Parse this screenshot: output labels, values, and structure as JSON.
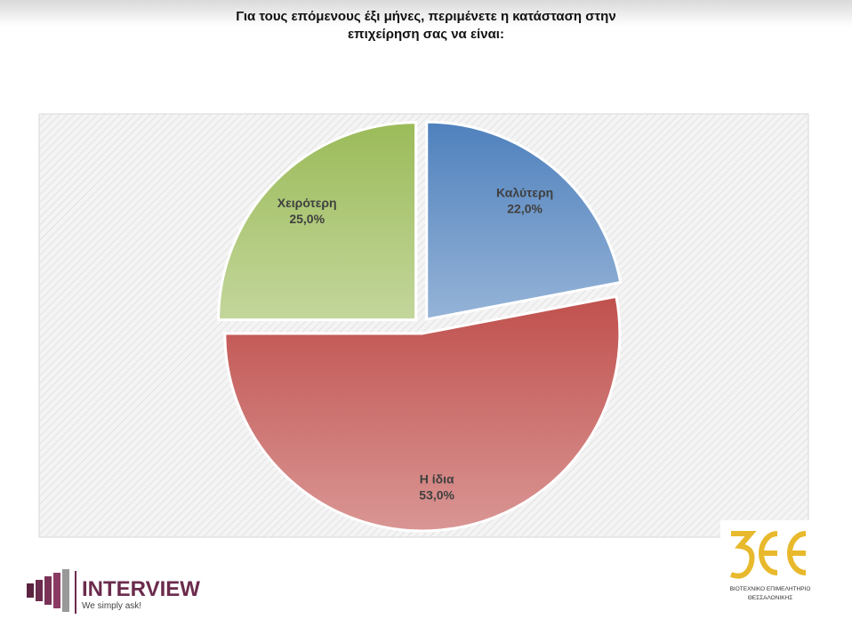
{
  "chart_data": {
    "type": "pie",
    "title": "Για τους επόμενους έξι μήνες, περιμένετε η κατάσταση στην επιχείρηση σας να είναι:",
    "categories": [
      "Καλύτερη",
      "Η ίδια",
      "Χειρότερη"
    ],
    "values": [
      22,
      53,
      25
    ],
    "value_labels": [
      "22,0%",
      "53,0%",
      "25,0%"
    ],
    "colors": [
      "#4f81bd",
      "#c0504d",
      "#9bbb59"
    ]
  },
  "footer": {
    "left_logo": {
      "name": "INTERVIEW",
      "tagline": "We simply ask!"
    },
    "right_logo": {
      "line1": "ΒΙΟΤΕΧΝΙΚΟ ΕΠΙΜΕΛΗΤΗΡΙΟ",
      "line2": "ΘΕΣΣΑΛΟΝΙΚΗΣ"
    }
  }
}
